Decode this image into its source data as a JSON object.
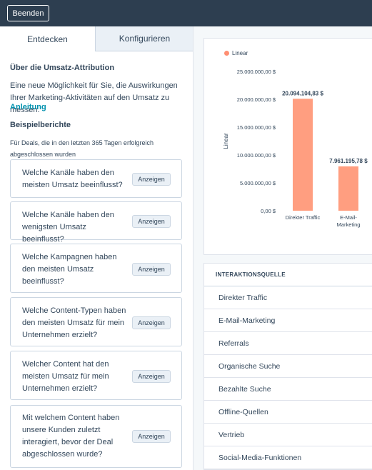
{
  "header": {
    "exit_label": "Beenden"
  },
  "tabs": [
    {
      "label": "Entdecken"
    },
    {
      "label": "Konfigurieren"
    }
  ],
  "about": {
    "title": "Über die Umsatz-Attribution",
    "text": "Eine neue Möglichkeit für Sie, die Auswirkungen Ihrer Marketing-Aktivitäten auf den Umsatz zu messen.",
    "link": "Anleitung"
  },
  "examples": {
    "title": "Beispielberichte",
    "note": "Für Deals, die in den letzten 365 Tagen erfolgreich abgeschlossen wurden",
    "show_label": "Anzeigen",
    "items": [
      {
        "question": "Welche Kanäle haben den meisten Umsatz beeinflusst?"
      },
      {
        "question": "Welche Kanäle haben den wenigsten Umsatz beeinflusst?"
      },
      {
        "question": "Welche Kampagnen haben den meisten Umsatz beeinflusst?"
      },
      {
        "question": "Welche Content-Typen haben den meisten Umsatz für mein Unternehmen erzielt?"
      },
      {
        "question": "Welcher Content hat den meisten Umsatz für mein Unternehmen erzielt?"
      },
      {
        "question": "Mit welchem Content haben unsere Kunden zuletzt interagiert, bevor der Deal abgeschlossen wurde?"
      }
    ]
  },
  "chart_data": {
    "type": "bar",
    "title": "",
    "xlabel": "",
    "ylabel": "Linear",
    "legend": "top-left",
    "bar_color": "#ff9e80",
    "ylim": [
      0,
      25000000
    ],
    "y_ticks": [
      "25.000.000,00 $",
      "20.000.000,00 $",
      "15.000.000,00 $",
      "10.000.000,00 $",
      "5.000.000,00 $",
      "0,00 $"
    ],
    "categories": [
      "Direkter Traffic",
      "E-Mail-Marketing"
    ],
    "category_lines": [
      [
        "Direkter Traffic"
      ],
      [
        "E-Mail-",
        "Marketing"
      ]
    ],
    "series": [
      {
        "name": "Linear",
        "values": [
          20094104.83,
          7961195.78
        ],
        "data_labels": [
          "20.094.104,83 $",
          "7.961.195,78 $"
        ]
      }
    ]
  },
  "source_table": {
    "header": "INTERAKTIONSQUELLE",
    "rows": [
      "Direkter Traffic",
      "E-Mail-Marketing",
      "Referrals",
      "Organische Suche",
      "Bezahlte Suche",
      "Offline-Quellen",
      "Vertrieb",
      "Social-Media-Funktionen"
    ]
  }
}
